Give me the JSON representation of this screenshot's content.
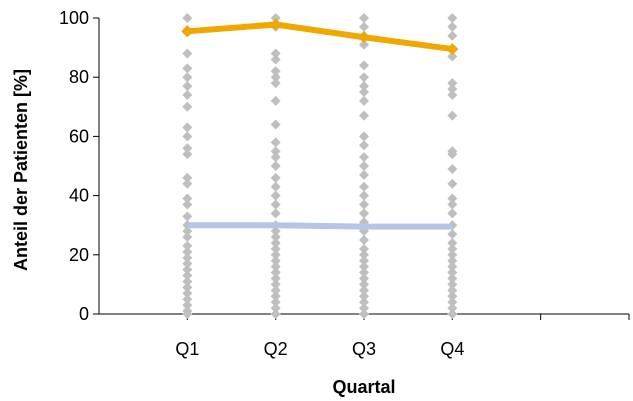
{
  "chart_data": {
    "type": "scatter",
    "title": "",
    "xlabel": "Quartal",
    "ylabel": "Anteil der Patienten [%]",
    "categories": [
      "Q1",
      "Q2",
      "Q3",
      "Q4"
    ],
    "x_range": [
      0,
      6
    ],
    "ylim": [
      0,
      100
    ],
    "yticks": [
      0,
      20,
      40,
      60,
      80,
      100
    ],
    "grid": false,
    "legend": "none",
    "scatter": {
      "color": "#BFBFBF",
      "marker": "diamond",
      "points": [
        [
          100,
          96,
          88,
          83,
          80,
          77,
          74,
          70,
          63,
          60,
          56,
          54,
          46,
          44,
          39,
          37,
          33,
          30,
          28,
          26,
          23,
          21,
          19,
          17,
          15,
          13,
          11,
          9,
          7,
          5,
          3,
          1,
          0
        ],
        [
          100,
          97,
          88,
          86,
          82,
          80,
          78,
          72,
          64,
          58,
          55,
          53,
          50,
          46,
          43,
          40,
          37,
          34,
          30,
          28,
          26,
          24,
          22,
          20,
          18,
          16,
          14,
          12,
          10,
          8,
          6,
          4,
          2,
          0
        ],
        [
          100,
          97,
          94,
          91,
          84,
          80,
          77,
          75,
          72,
          67,
          60,
          57,
          53,
          50,
          47,
          43,
          40,
          37,
          34,
          31,
          28,
          25,
          22,
          20,
          18,
          16,
          14,
          12,
          10,
          8,
          6,
          4,
          2,
          0
        ],
        [
          100,
          97,
          94,
          87,
          78,
          76,
          74,
          67,
          55,
          54,
          49,
          44,
          39,
          37,
          34,
          30,
          27,
          24,
          22,
          20,
          18,
          16,
          14,
          12,
          10,
          8,
          6,
          4,
          2,
          0
        ]
      ]
    },
    "series": [
      {
        "values": [
          95.5,
          97.8,
          93.5,
          89.5
        ],
        "color": "#F0A800"
      },
      {
        "values": [
          30,
          30,
          29.5,
          29.5
        ],
        "color": "#B3C6E7"
      }
    ]
  }
}
